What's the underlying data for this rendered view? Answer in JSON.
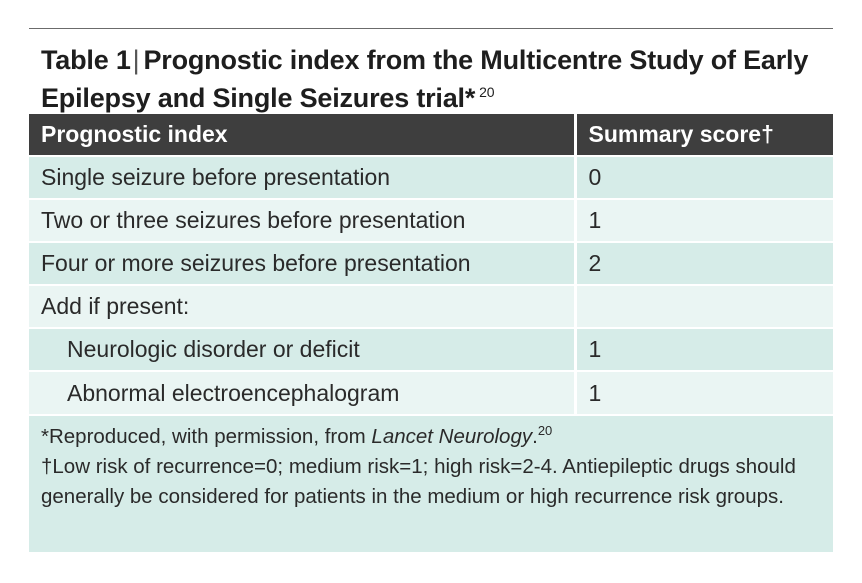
{
  "table": {
    "label": "Table 1",
    "separator": "|",
    "title": "Prognostic index from the Multicentre Study of Early Epilepsy and Single Seizures trial*",
    "title_ref": "20",
    "columns": [
      "Prognostic index",
      "Summary score†"
    ],
    "rows": [
      {
        "label": "Single seizure before presentation",
        "score": "0",
        "indent": false
      },
      {
        "label": "Two or three seizures before presentation",
        "score": "1",
        "indent": false
      },
      {
        "label": "Four or more seizures before presentation",
        "score": "2",
        "indent": false
      },
      {
        "label": "Add if present:",
        "score": "",
        "indent": false
      },
      {
        "label": "Neurologic disorder or deficit",
        "score": "1",
        "indent": true
      },
      {
        "label": "Abnormal electroencephalogram",
        "score": "1",
        "indent": true
      }
    ]
  },
  "footnotes": {
    "source_prefix": "*Reproduced, with permission, from",
    "source_journal": "Lancet Neurology",
    "source_suffix": ".",
    "source_ref": "20",
    "dagger_note": "†Low risk of recurrence=0; medium risk=1; high risk=2-4. Antiepileptic drugs should generally be considered for patients in the medium or high recurrence risk groups."
  },
  "colors": {
    "header_bg": "#3e3e3e",
    "row_dark": "#d6ece8",
    "row_light": "#eaf5f3"
  }
}
